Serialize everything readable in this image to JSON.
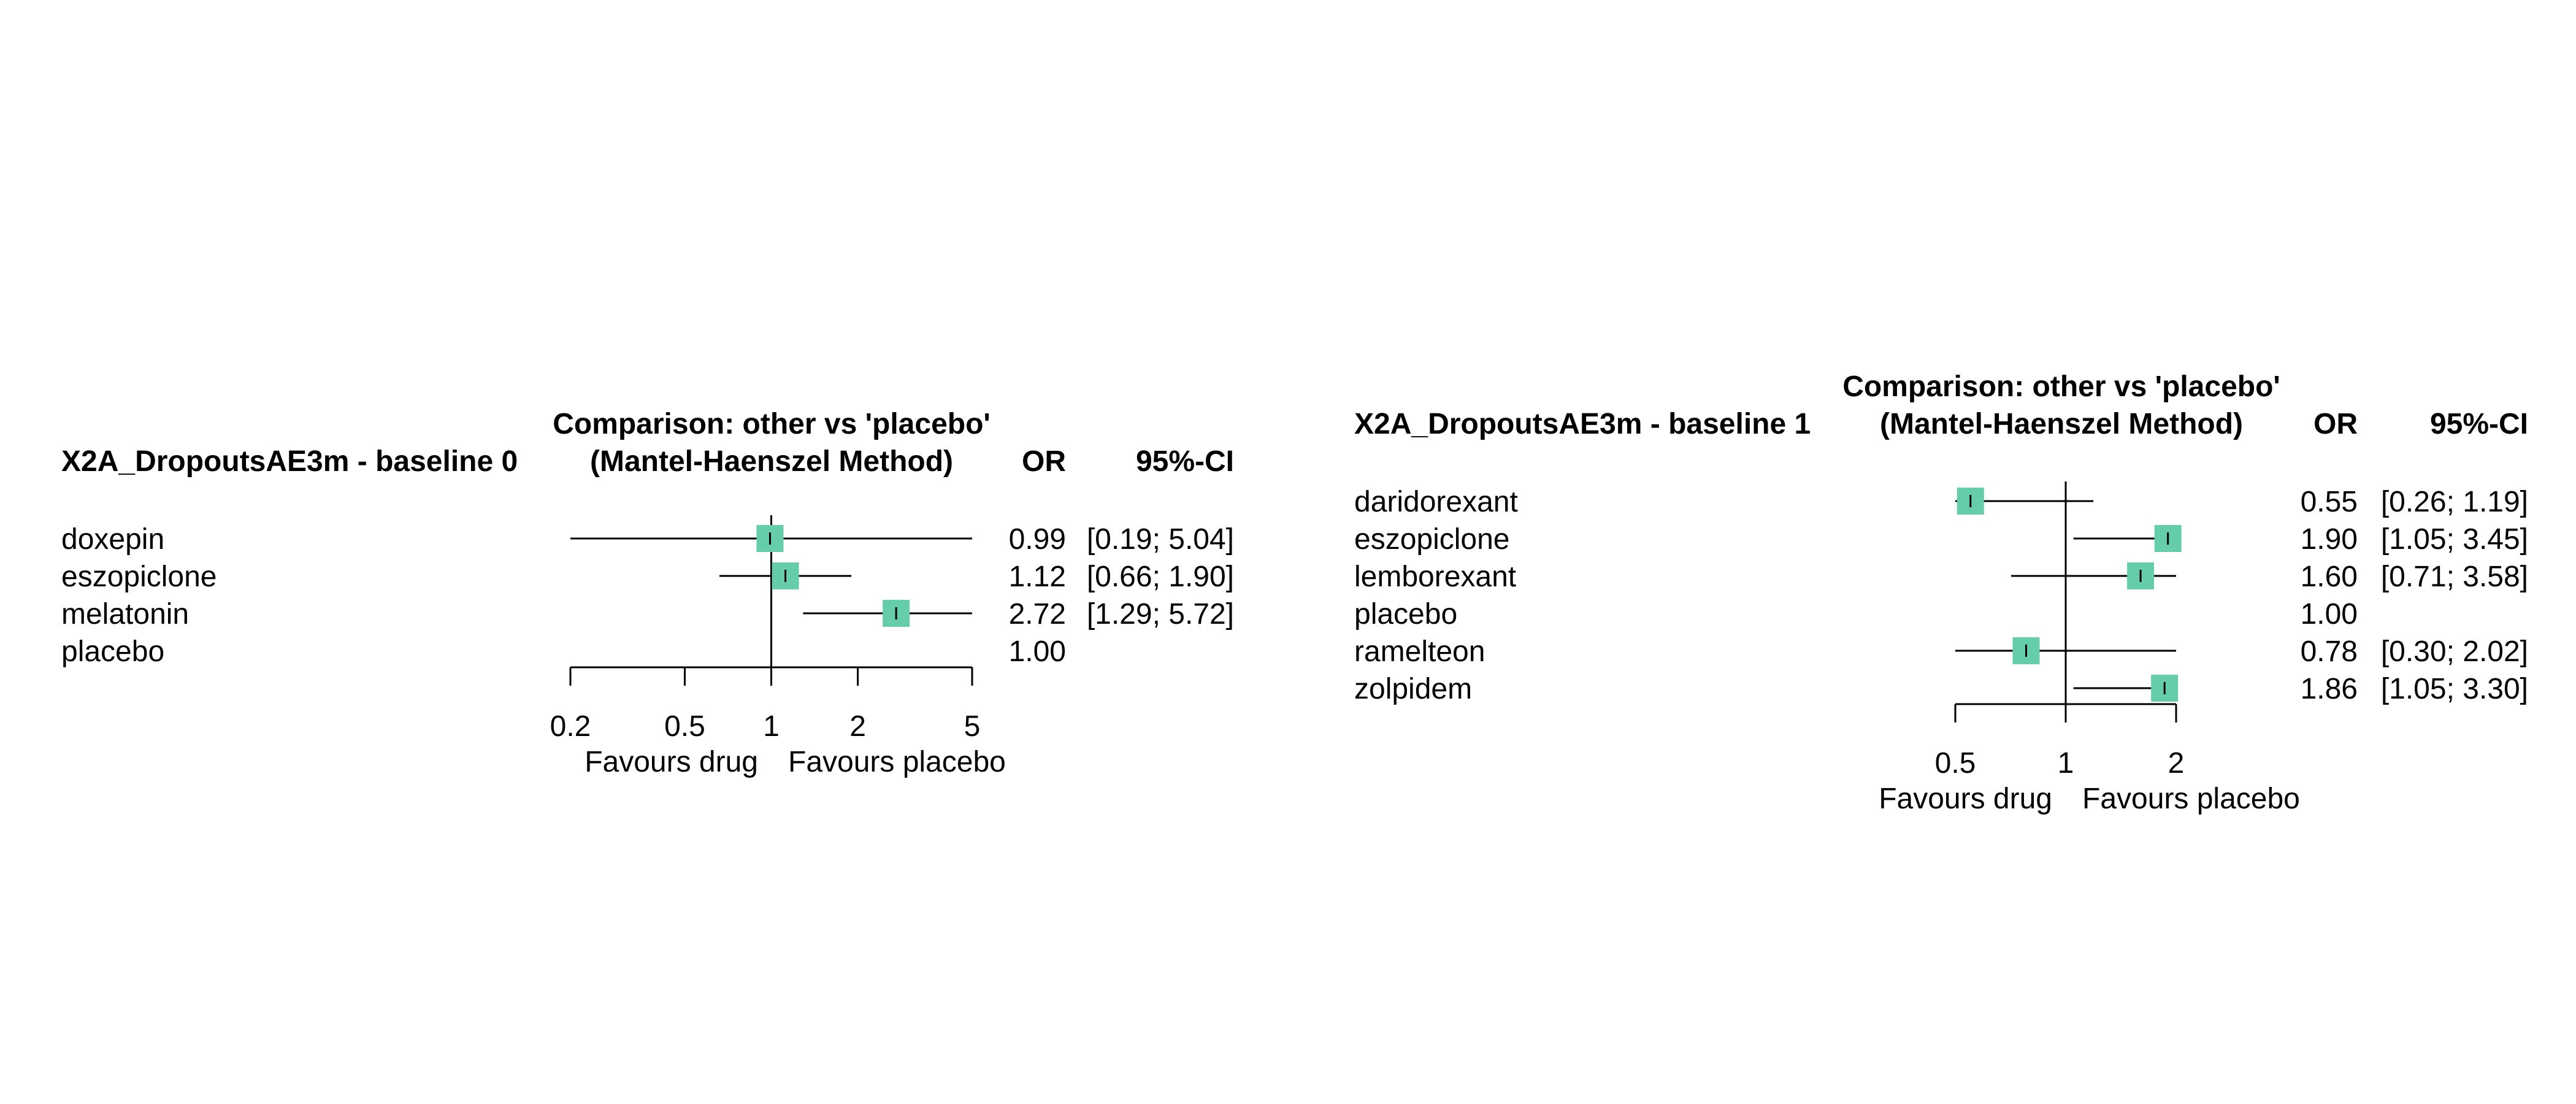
{
  "chart_data": [
    {
      "type": "forest",
      "title": "X2A_DropoutsAE3m - baseline 0",
      "header_line1": "Comparison: other vs 'placebo'",
      "header_line2": "(Mantel-Haenszel Method)",
      "col_or": "OR",
      "col_ci": "95%-CI",
      "x_scale": "log",
      "xlim": [
        0.2,
        5
      ],
      "ticks": [
        0.2,
        0.5,
        1,
        2,
        5
      ],
      "tick_labels": [
        "0.2",
        "0.5",
        "1",
        "2",
        "5"
      ],
      "favours_left": "Favours drug",
      "favours_right": "Favours placebo",
      "marker_color": "#66CDAA",
      "rows": [
        {
          "label": "doxepin",
          "or": 0.99,
          "lo": 0.19,
          "hi": 5.04,
          "or_text": "0.99",
          "ci_text": "[0.19; 5.04]"
        },
        {
          "label": "eszopiclone",
          "or": 1.12,
          "lo": 0.66,
          "hi": 1.9,
          "or_text": "1.12",
          "ci_text": "[0.66; 1.90]"
        },
        {
          "label": "melatonin",
          "or": 2.72,
          "lo": 1.29,
          "hi": 5.72,
          "or_text": "2.72",
          "ci_text": "[1.29; 5.72]"
        },
        {
          "label": "placebo",
          "or": 1.0,
          "lo": null,
          "hi": null,
          "or_text": "1.00",
          "ci_text": ""
        }
      ]
    },
    {
      "type": "forest",
      "title": "X2A_DropoutsAE3m - baseline 1",
      "header_line1": "Comparison: other vs 'placebo'",
      "header_line2": "(Mantel-Haenszel Method)",
      "col_or": "OR",
      "col_ci": "95%-CI",
      "x_scale": "log",
      "xlim": [
        0.5,
        2
      ],
      "ticks": [
        0.5,
        1,
        2
      ],
      "tick_labels": [
        "0.5",
        "1",
        "2"
      ],
      "favours_left": "Favours drug",
      "favours_right": "Favours placebo",
      "marker_color": "#66CDAA",
      "rows": [
        {
          "label": "daridorexant",
          "or": 0.55,
          "lo": 0.26,
          "hi": 1.19,
          "or_text": "0.55",
          "ci_text": "[0.26; 1.19]"
        },
        {
          "label": "eszopiclone",
          "or": 1.9,
          "lo": 1.05,
          "hi": 3.45,
          "or_text": "1.90",
          "ci_text": "[1.05; 3.45]"
        },
        {
          "label": "lemborexant",
          "or": 1.6,
          "lo": 0.71,
          "hi": 3.58,
          "or_text": "1.60",
          "ci_text": "[0.71; 3.58]"
        },
        {
          "label": "placebo",
          "or": 1.0,
          "lo": null,
          "hi": null,
          "or_text": "1.00",
          "ci_text": ""
        },
        {
          "label": "ramelteon",
          "or": 0.78,
          "lo": 0.3,
          "hi": 2.02,
          "or_text": "0.78",
          "ci_text": "[0.30; 2.02]"
        },
        {
          "label": "zolpidem",
          "or": 1.86,
          "lo": 1.05,
          "hi": 3.3,
          "or_text": "1.86",
          "ci_text": "[1.05; 3.30]"
        }
      ]
    }
  ]
}
